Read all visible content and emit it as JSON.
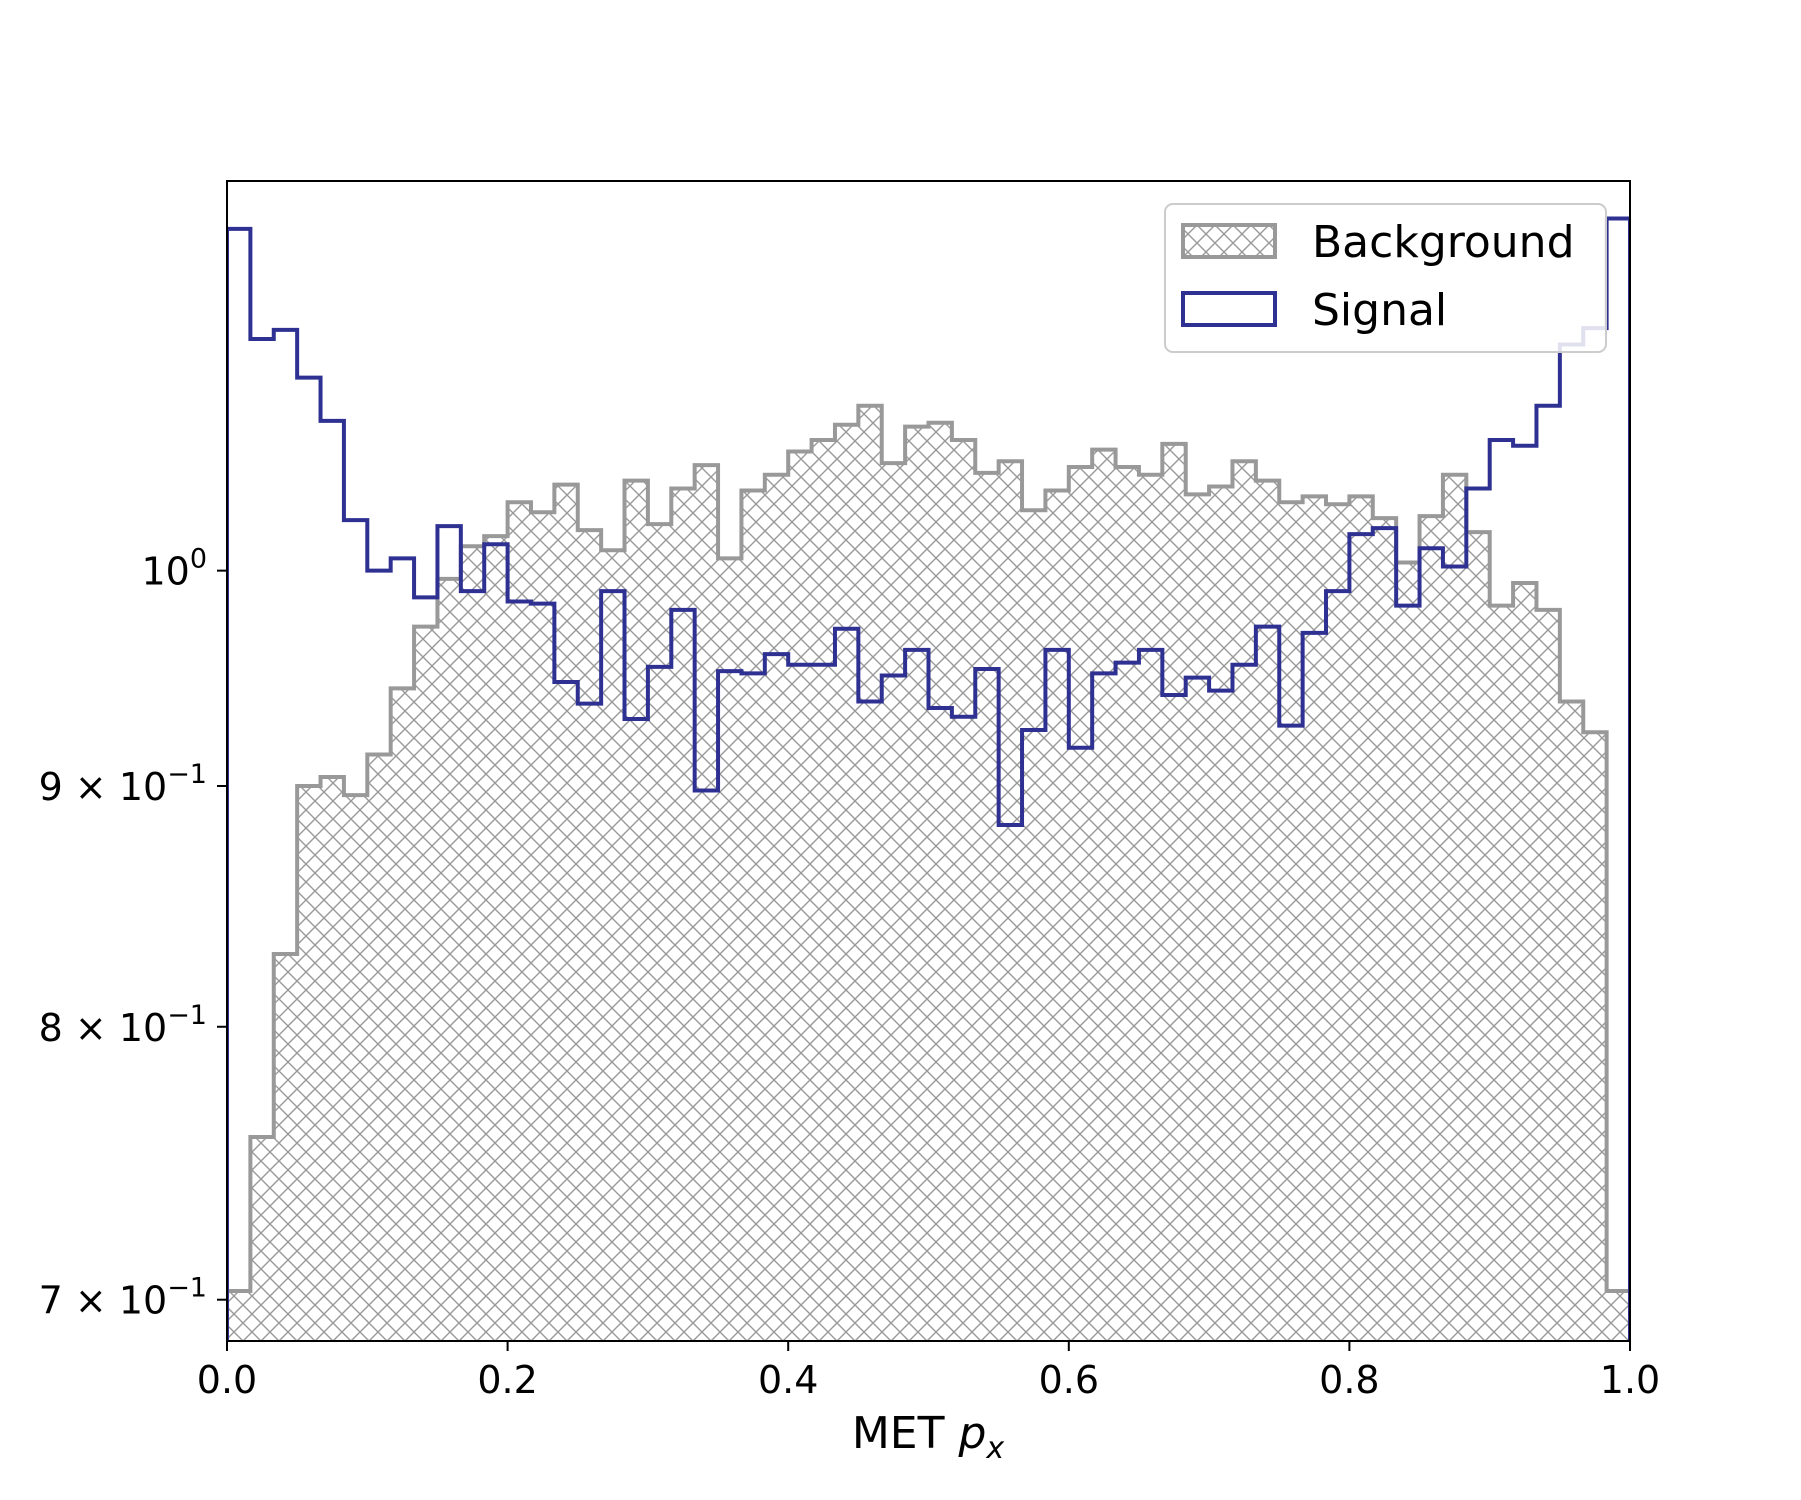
{
  "chart_data": {
    "type": "histogram",
    "xlabel_text": "MET ",
    "xlabel_math": "p",
    "xlabel_sub": "x",
    "ylabel": "",
    "xlim": [
      0.0,
      1.0
    ],
    "ylim": [
      0.686,
      1.21
    ],
    "yscale": "log",
    "grid": false,
    "legend_position": "top-right",
    "x_ticks": [
      {
        "value": 0.0,
        "label": "0.0"
      },
      {
        "value": 0.2,
        "label": "0.2"
      },
      {
        "value": 0.4,
        "label": "0.4"
      },
      {
        "value": 0.6,
        "label": "0.6"
      },
      {
        "value": 0.8,
        "label": "0.8"
      },
      {
        "value": 1.0,
        "label": "1.0"
      }
    ],
    "y_ticks": [
      {
        "value": 1.0,
        "mantissa": "",
        "base": "10",
        "exp": "0"
      },
      {
        "value": 0.9,
        "mantissa": "9 × ",
        "base": "10",
        "exp": "−1"
      },
      {
        "value": 0.8,
        "mantissa": "8 × ",
        "base": "10",
        "exp": "−1"
      },
      {
        "value": 0.7,
        "mantissa": "7 × ",
        "base": "10",
        "exp": "−1"
      }
    ],
    "bins": 60,
    "series": [
      {
        "name": "Background",
        "style": "hatched",
        "color": "#999999",
        "values": [
          0.703,
          0.758,
          0.829,
          0.9,
          0.904,
          0.896,
          0.914,
          0.944,
          0.973,
          0.996,
          1.012,
          1.017,
          1.034,
          1.029,
          1.043,
          1.02,
          1.01,
          1.045,
          1.023,
          1.041,
          1.053,
          1.006,
          1.04,
          1.048,
          1.06,
          1.066,
          1.074,
          1.084,
          1.054,
          1.073,
          1.075,
          1.066,
          1.049,
          1.055,
          1.03,
          1.04,
          1.052,
          1.061,
          1.052,
          1.048,
          1.064,
          1.038,
          1.042,
          1.055,
          1.045,
          1.034,
          1.037,
          1.033,
          1.037,
          1.026,
          1.004,
          1.027,
          1.048,
          1.019,
          0.983,
          0.994,
          0.981,
          0.938,
          0.924,
          0.703
        ]
      },
      {
        "name": "Signal",
        "style": "step",
        "color": "#2e3192",
        "values": [
          1.182,
          1.12,
          1.125,
          1.099,
          1.076,
          1.025,
          1.0,
          1.006,
          0.987,
          1.022,
          0.99,
          1.013,
          0.985,
          0.984,
          0.947,
          0.937,
          0.99,
          0.93,
          0.954,
          0.981,
          0.898,
          0.952,
          0.951,
          0.96,
          0.955,
          0.955,
          0.972,
          0.938,
          0.95,
          0.962,
          0.935,
          0.931,
          0.953,
          0.883,
          0.925,
          0.962,
          0.917,
          0.951,
          0.956,
          0.962,
          0.941,
          0.949,
          0.943,
          0.955,
          0.973,
          0.927,
          0.97,
          0.99,
          1.018,
          1.021,
          0.983,
          1.011,
          1.002,
          1.041,
          1.066,
          1.063,
          1.084,
          1.117,
          1.126,
          1.188
        ]
      }
    ]
  }
}
